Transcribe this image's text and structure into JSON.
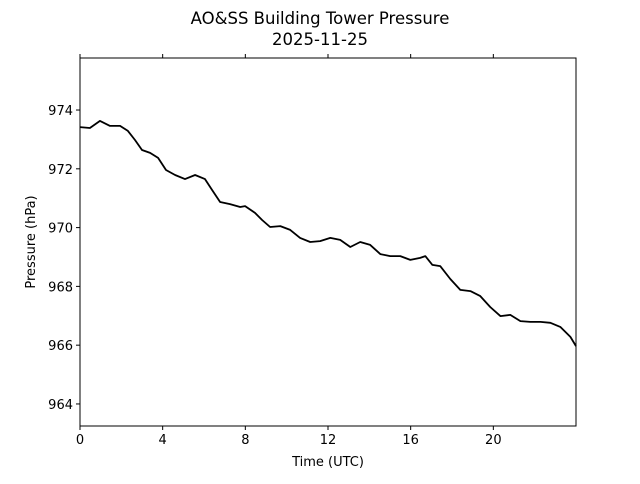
{
  "chart_data": {
    "type": "line",
    "title": "AO&SS Building Tower Pressure",
    "subtitle": "2025-11-25",
    "xlabel": "Time (UTC)",
    "ylabel": "Pressure (hPa)",
    "xlim": [
      0,
      24
    ],
    "ylim": [
      963.25,
      975.77
    ],
    "xticks": [
      0,
      4,
      8,
      12,
      16,
      20
    ],
    "xtick_labels": [
      "0",
      "4",
      "8",
      "12",
      "16",
      "20"
    ],
    "yticks": [
      964,
      966,
      968,
      970,
      972,
      974
    ],
    "ytick_labels": [
      "964",
      "966",
      "968",
      "970",
      "972",
      "974"
    ],
    "grid": false,
    "line_color": "#000000",
    "series": [
      {
        "name": "Pressure",
        "x": [
          0,
          0.48,
          0.97,
          1.45,
          1.94,
          2.32,
          2.66,
          3.0,
          3.39,
          3.78,
          4.16,
          4.6,
          5.08,
          5.57,
          6.05,
          6.39,
          6.78,
          7.26,
          7.75,
          7.99,
          8.47,
          8.81,
          9.2,
          9.69,
          10.17,
          10.65,
          11.14,
          11.62,
          12.11,
          12.59,
          13.08,
          13.56,
          14.04,
          14.53,
          15.01,
          15.5,
          15.98,
          16.46,
          16.71,
          17.05,
          17.43,
          17.92,
          18.4,
          18.89,
          19.37,
          19.85,
          20.34,
          20.82,
          21.31,
          21.79,
          22.28,
          22.76,
          23.24,
          23.73,
          24.0
        ],
        "y": [
          973.42,
          973.39,
          973.63,
          973.46,
          973.46,
          973.29,
          972.98,
          972.64,
          972.54,
          972.37,
          971.96,
          971.79,
          971.65,
          971.79,
          971.65,
          971.28,
          970.87,
          970.8,
          970.7,
          970.73,
          970.5,
          970.26,
          970.02,
          970.05,
          969.92,
          969.65,
          969.51,
          969.54,
          969.65,
          969.58,
          969.34,
          969.51,
          969.41,
          969.1,
          969.03,
          969.03,
          968.9,
          968.97,
          969.03,
          968.73,
          968.69,
          968.25,
          967.88,
          967.84,
          967.67,
          967.3,
          966.99,
          967.03,
          966.82,
          966.79,
          966.79,
          966.76,
          966.62,
          966.28,
          965.97
        ]
      }
    ]
  }
}
